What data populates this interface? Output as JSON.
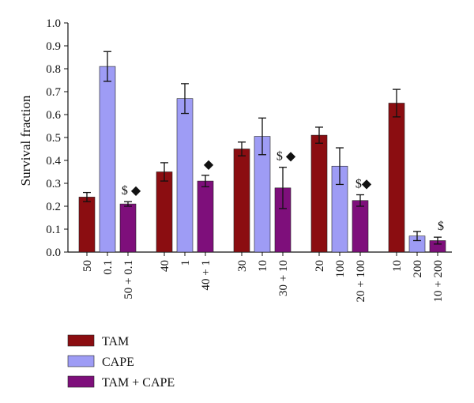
{
  "chart_data": {
    "type": "bar",
    "title": "",
    "xlabel": "",
    "ylabel": "Survival fraction",
    "ylim": [
      0,
      1.0
    ],
    "yticks": [
      "0.0",
      "0.1",
      "0.2",
      "0.3",
      "0.4",
      "0.5",
      "0.6",
      "0.7",
      "0.8",
      "0.9",
      "1.0"
    ],
    "grid": false,
    "legend_position": "bottom-left",
    "series": [
      {
        "name": "TAM",
        "color": "#8b0d11"
      },
      {
        "name": "CAPE",
        "color": "#9e9cf5"
      },
      {
        "name": "TAM + CAPE",
        "color": "#7e0f7b"
      }
    ],
    "groups": [
      {
        "bars": [
          {
            "label": "50",
            "series": 0,
            "value": 0.24,
            "error": 0.02,
            "annotation": ""
          },
          {
            "label": "0.1",
            "series": 1,
            "value": 0.81,
            "error": 0.065,
            "annotation": ""
          },
          {
            "label": "50 + 0.1",
            "series": 2,
            "value": 0.21,
            "error": 0.01,
            "annotation": "$ ◆"
          }
        ]
      },
      {
        "bars": [
          {
            "label": "40",
            "series": 0,
            "value": 0.35,
            "error": 0.04,
            "annotation": ""
          },
          {
            "label": "1",
            "series": 1,
            "value": 0.67,
            "error": 0.065,
            "annotation": ""
          },
          {
            "label": "40 + 1",
            "series": 2,
            "value": 0.31,
            "error": 0.025,
            "annotation": "◆"
          }
        ]
      },
      {
        "bars": [
          {
            "label": "30",
            "series": 0,
            "value": 0.45,
            "error": 0.03,
            "annotation": ""
          },
          {
            "label": "10",
            "series": 1,
            "value": 0.505,
            "error": 0.08,
            "annotation": ""
          },
          {
            "label": "30 + 10",
            "series": 2,
            "value": 0.28,
            "error": 0.09,
            "annotation": "$ ◆"
          }
        ]
      },
      {
        "bars": [
          {
            "label": "20",
            "series": 0,
            "value": 0.51,
            "error": 0.035,
            "annotation": ""
          },
          {
            "label": "100",
            "series": 1,
            "value": 0.375,
            "error": 0.08,
            "annotation": ""
          },
          {
            "label": "20 + 100",
            "series": 2,
            "value": 0.225,
            "error": 0.025,
            "annotation": "$◆"
          }
        ]
      },
      {
        "bars": [
          {
            "label": "10",
            "series": 0,
            "value": 0.65,
            "error": 0.06,
            "annotation": ""
          },
          {
            "label": "200",
            "series": 1,
            "value": 0.07,
            "error": 0.02,
            "annotation": ""
          },
          {
            "label": "10 + 200",
            "series": 2,
            "value": 0.05,
            "error": 0.015,
            "annotation": "$"
          }
        ]
      }
    ]
  }
}
